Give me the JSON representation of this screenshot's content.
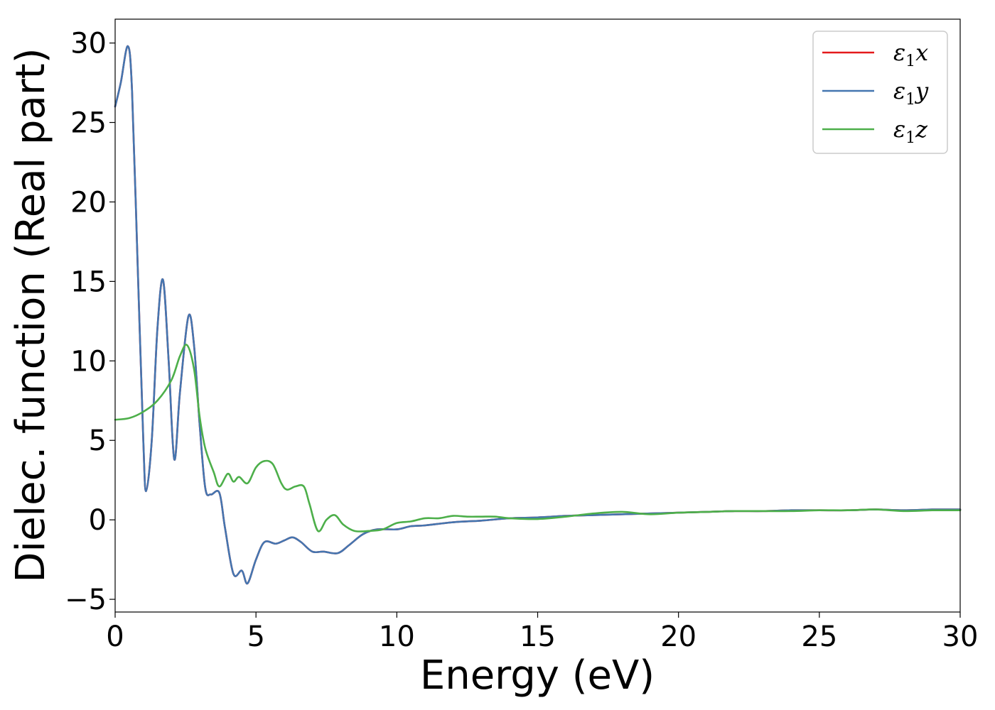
{
  "chart_data": {
    "type": "line",
    "xlabel": "Energy (eV)",
    "ylabel": "Dielec. function (Real part)",
    "xlim": [
      0,
      30
    ],
    "ylim": [
      -5.8,
      31.5
    ],
    "xticks": [
      0,
      5,
      10,
      15,
      20,
      25,
      30
    ],
    "yticks": [
      -5,
      0,
      5,
      10,
      15,
      20,
      25,
      30
    ],
    "grid": false,
    "legend_position": "top-right",
    "series": [
      {
        "name": "x",
        "legend_prefix": "ε",
        "legend_sub": "1",
        "color": "#e41a1c",
        "x": [
          0,
          0.2,
          0.45,
          0.6,
          0.8,
          1.0,
          1.1,
          1.3,
          1.5,
          1.7,
          1.9,
          2.1,
          2.3,
          2.6,
          2.8,
          3.0,
          3.2,
          3.4,
          3.7,
          3.9,
          4.2,
          4.5,
          4.7,
          5.0,
          5.3,
          5.7,
          6.0,
          6.3,
          6.6,
          7.0,
          7.4,
          7.9,
          8.3,
          8.8,
          9.3,
          10.0,
          10.5,
          11.0,
          12.0,
          13.0,
          14.0,
          15.0,
          16.0,
          17.0,
          18.0,
          19.0,
          20.0,
          21.0,
          22.0,
          23.0,
          24.0,
          25.0,
          26.0,
          27.0,
          28.0,
          29.0,
          30.0
        ],
        "values": [
          26.0,
          27.5,
          29.8,
          27.0,
          16.0,
          5.0,
          1.8,
          5.0,
          12.0,
          15.1,
          10.0,
          3.8,
          8.0,
          12.8,
          11.0,
          6.0,
          2.0,
          1.6,
          1.7,
          -0.5,
          -3.4,
          -3.2,
          -4.0,
          -2.5,
          -1.4,
          -1.5,
          -1.3,
          -1.1,
          -1.4,
          -2.0,
          -2.0,
          -2.1,
          -1.6,
          -0.9,
          -0.6,
          -0.6,
          -0.4,
          -0.35,
          -0.15,
          -0.05,
          0.1,
          0.15,
          0.25,
          0.3,
          0.35,
          0.4,
          0.45,
          0.5,
          0.55,
          0.55,
          0.6,
          0.6,
          0.6,
          0.65,
          0.6,
          0.65,
          0.65
        ]
      },
      {
        "name": "y",
        "legend_prefix": "ε",
        "legend_sub": "1",
        "color": "#4476b0",
        "x": [
          0,
          0.2,
          0.45,
          0.6,
          0.8,
          1.0,
          1.1,
          1.3,
          1.5,
          1.7,
          1.9,
          2.1,
          2.3,
          2.6,
          2.8,
          3.0,
          3.2,
          3.4,
          3.7,
          3.9,
          4.2,
          4.5,
          4.7,
          5.0,
          5.3,
          5.7,
          6.0,
          6.3,
          6.6,
          7.0,
          7.4,
          7.9,
          8.3,
          8.8,
          9.3,
          10.0,
          10.5,
          11.0,
          12.0,
          13.0,
          14.0,
          15.0,
          16.0,
          17.0,
          18.0,
          19.0,
          20.0,
          21.0,
          22.0,
          23.0,
          24.0,
          25.0,
          26.0,
          27.0,
          28.0,
          29.0,
          30.0
        ],
        "values": [
          26.0,
          27.5,
          29.8,
          27.0,
          16.0,
          5.0,
          1.8,
          5.0,
          12.0,
          15.1,
          10.0,
          3.8,
          8.0,
          12.8,
          11.0,
          6.0,
          2.0,
          1.6,
          1.7,
          -0.5,
          -3.4,
          -3.2,
          -4.0,
          -2.5,
          -1.4,
          -1.5,
          -1.3,
          -1.1,
          -1.4,
          -2.0,
          -2.0,
          -2.1,
          -1.6,
          -0.9,
          -0.6,
          -0.6,
          -0.4,
          -0.35,
          -0.15,
          -0.05,
          0.1,
          0.15,
          0.25,
          0.3,
          0.35,
          0.4,
          0.45,
          0.5,
          0.55,
          0.55,
          0.6,
          0.6,
          0.6,
          0.65,
          0.6,
          0.65,
          0.65
        ]
      },
      {
        "name": "z",
        "legend_prefix": "ε",
        "legend_sub": "1",
        "color": "#4daf4a",
        "x": [
          0,
          0.5,
          1.0,
          1.5,
          2.0,
          2.3,
          2.55,
          2.8,
          3.0,
          3.2,
          3.5,
          3.7,
          4.0,
          4.2,
          4.4,
          4.7,
          5.0,
          5.3,
          5.6,
          5.9,
          6.1,
          6.4,
          6.7,
          6.9,
          7.2,
          7.5,
          7.8,
          8.1,
          8.5,
          9.0,
          9.5,
          10.0,
          10.5,
          11.0,
          11.5,
          12.0,
          12.5,
          13.0,
          13.5,
          14.0,
          15.0,
          16.0,
          17.0,
          18.0,
          19.0,
          20.0,
          21.0,
          22.0,
          23.0,
          24.0,
          25.0,
          26.0,
          27.0,
          28.0,
          29.0,
          30.0
        ],
        "values": [
          6.3,
          6.4,
          6.8,
          7.5,
          8.8,
          10.3,
          11.0,
          9.5,
          6.5,
          4.5,
          3.0,
          2.1,
          2.9,
          2.4,
          2.7,
          2.3,
          3.3,
          3.7,
          3.5,
          2.3,
          1.9,
          2.1,
          2.1,
          1.0,
          -0.7,
          0.0,
          0.3,
          -0.3,
          -0.7,
          -0.7,
          -0.6,
          -0.2,
          -0.1,
          0.1,
          0.1,
          0.25,
          0.2,
          0.2,
          0.2,
          0.1,
          0.05,
          0.2,
          0.4,
          0.5,
          0.35,
          0.45,
          0.5,
          0.55,
          0.55,
          0.55,
          0.6,
          0.6,
          0.65,
          0.55,
          0.6,
          0.6
        ]
      }
    ]
  }
}
